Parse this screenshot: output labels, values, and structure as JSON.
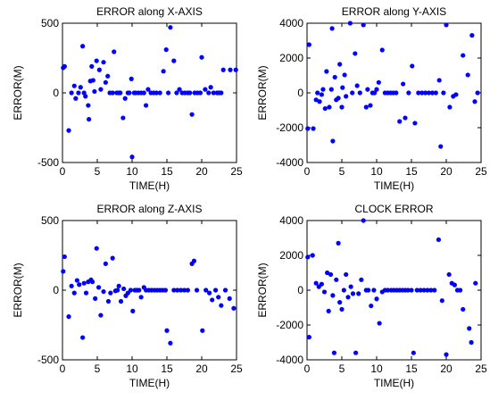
{
  "chart_data": [
    {
      "type": "scatter",
      "title": "ERROR along X-AXIS",
      "xlabel": "TIME(H)",
      "ylabel": "ERROR(M)",
      "color": "#0000ff",
      "xlim": [
        0,
        25
      ],
      "ylim": [
        -500,
        500
      ],
      "xticks": [
        0,
        5,
        10,
        15,
        20,
        25
      ],
      "yticks": [
        -500,
        0,
        500
      ],
      "x": [
        0.1,
        0.3,
        0.9,
        1.3,
        1.7,
        1.9,
        2.3,
        2.6,
        2.9,
        3.1,
        3.3,
        3.7,
        3.8,
        4.0,
        4.2,
        4.4,
        4.6,
        4.9,
        5.3,
        5.5,
        5.9,
        6.2,
        6.5,
        6.8,
        7.2,
        7.4,
        7.8,
        8.1,
        8.3,
        8.7,
        9.0,
        9.4,
        9.6,
        9.9,
        10.0,
        10.3,
        10.5,
        10.9,
        11.3,
        11.7,
        12.0,
        12.3,
        12.7,
        13.1,
        13.5,
        14.0,
        14.5,
        14.9,
        15.2,
        15.5,
        16.0,
        16.4,
        16.8,
        17.2,
        17.6,
        18.0,
        18.3,
        18.6,
        19.0,
        19.4,
        19.8,
        20.0,
        20.5,
        21.0,
        21.3,
        21.7,
        22.2,
        22.5,
        22.8,
        23.1,
        24.1,
        24.9
      ],
      "values": [
        180,
        190,
        -270,
        0,
        50,
        -40,
        0,
        40,
        335,
        0,
        -25,
        -90,
        -190,
        85,
        190,
        90,
        10,
        230,
        165,
        25,
        220,
        75,
        120,
        0,
        0,
        295,
        0,
        0,
        0,
        -180,
        -40,
        0,
        0,
        100,
        -460,
        0,
        0,
        0,
        0,
        0,
        -90,
        25,
        0,
        0,
        0,
        0,
        155,
        310,
        0,
        470,
        230,
        0,
        25,
        0,
        0,
        0,
        0,
        -155,
        0,
        0,
        0,
        255,
        25,
        0,
        40,
        0,
        0,
        0,
        0,
        165,
        165,
        165
      ]
    },
    {
      "type": "scatter",
      "title": "ERROR along Y-AXIS",
      "xlabel": "TIME(H)",
      "ylabel": "ERROR(M)",
      "color": "#0000ff",
      "xlim": [
        0,
        25
      ],
      "ylim": [
        -4000,
        4000
      ],
      "xticks": [
        0,
        5,
        10,
        15,
        20,
        25
      ],
      "yticks": [
        -4000,
        -2000,
        0,
        2000,
        4000
      ],
      "x": [
        0.1,
        0.3,
        0.9,
        1.3,
        1.5,
        1.8,
        2.1,
        2.3,
        2.6,
        2.8,
        3.2,
        3.5,
        3.6,
        3.7,
        4.0,
        4.2,
        4.5,
        4.7,
        5.0,
        5.1,
        5.4,
        5.6,
        6.2,
        6.5,
        6.9,
        7.2,
        7.6,
        8.1,
        8.5,
        8.7,
        9.1,
        9.4,
        9.7,
        10.0,
        10.3,
        10.8,
        11.2,
        11.6,
        12.0,
        12.4,
        12.8,
        13.3,
        13.8,
        14.1,
        14.6,
        15.1,
        15.5,
        16.0,
        16.5,
        17.0,
        17.5,
        18.0,
        18.5,
        19.0,
        19.2,
        19.6,
        20.0,
        20.5,
        21.0,
        21.4,
        22.4,
        23.1,
        23.7,
        24.1,
        24.5
      ],
      "values": [
        -2050,
        2770,
        -2050,
        -400,
        0,
        -500,
        -100,
        200,
        -900,
        1230,
        -820,
        200,
        3700,
        -2770,
        900,
        -400,
        -300,
        1640,
        -820,
        300,
        1030,
        -200,
        4000,
        0,
        2260,
        410,
        0,
        3900,
        -820,
        200,
        -720,
        0,
        0,
        200,
        600,
        2460,
        0,
        0,
        0,
        0,
        0,
        -1640,
        510,
        -1440,
        0,
        1540,
        -1740,
        0,
        0,
        0,
        0,
        0,
        0,
        720,
        -3080,
        0,
        3900,
        -820,
        -200,
        -100,
        2150,
        1030,
        3300,
        -500,
        0
      ]
    },
    {
      "type": "scatter",
      "title": "ERROR along Z-AXIS",
      "xlabel": "TIME(H)",
      "ylabel": "ERROR(M)",
      "color": "#0000ff",
      "xlim": [
        0,
        25
      ],
      "ylim": [
        -500,
        500
      ],
      "xticks": [
        0,
        5,
        10,
        15,
        20,
        25
      ],
      "yticks": [
        -500,
        0,
        500
      ],
      "x": [
        0.1,
        0.3,
        0.9,
        1.3,
        1.7,
        2.1,
        2.4,
        2.9,
        3.1,
        3.4,
        3.7,
        4.1,
        4.3,
        4.7,
        4.9,
        5.2,
        5.5,
        5.9,
        6.2,
        6.6,
        6.9,
        7.2,
        7.6,
        7.9,
        8.1,
        8.4,
        8.8,
        9.1,
        9.4,
        9.8,
        10.1,
        10.4,
        10.7,
        11.0,
        11.3,
        11.7,
        12.0,
        12.4,
        12.8,
        13.2,
        13.6,
        14.0,
        14.4,
        14.8,
        15.0,
        15.5,
        16.0,
        16.5,
        17.0,
        17.5,
        18.0,
        18.6,
        18.9,
        19.3,
        20.1,
        20.6,
        21.1,
        21.5,
        22.0,
        22.4,
        22.8,
        23.4,
        24.0,
        24.6
      ],
      "values": [
        135,
        240,
        -190,
        30,
        -20,
        70,
        40,
        -340,
        50,
        -20,
        60,
        75,
        60,
        -60,
        300,
        20,
        -180,
        -10,
        190,
        -80,
        -20,
        230,
        -5,
        0,
        30,
        -80,
        10,
        -40,
        -20,
        0,
        -150,
        0,
        0,
        0,
        -50,
        20,
        0,
        0,
        0,
        0,
        0,
        0,
        0,
        0,
        -290,
        -380,
        0,
        0,
        0,
        0,
        0,
        190,
        210,
        0,
        -290,
        0,
        -20,
        -70,
        0,
        -50,
        -110,
        0,
        -60,
        -130
      ]
    },
    {
      "type": "scatter",
      "title": "CLOCK ERROR",
      "xlabel": "TIME(H)",
      "ylabel": "ERROR(M)",
      "color": "#0000ff",
      "xlim": [
        0,
        25
      ],
      "ylim": [
        -4000,
        4000
      ],
      "xticks": [
        0,
        5,
        10,
        15,
        20,
        25
      ],
      "yticks": [
        -4000,
        -2000,
        0,
        2000,
        4000
      ],
      "x": [
        0.1,
        0.3,
        0.8,
        1.3,
        1.7,
        2.1,
        2.5,
        2.9,
        3.1,
        3.4,
        3.7,
        3.9,
        4.2,
        4.5,
        4.7,
        5.0,
        5.3,
        5.6,
        5.9,
        6.3,
        6.6,
        7.0,
        7.4,
        7.8,
        8.1,
        8.5,
        8.8,
        9.2,
        9.6,
        10.0,
        10.4,
        10.8,
        11.2,
        11.6,
        12.1,
        12.5,
        12.9,
        13.3,
        13.7,
        14.1,
        14.5,
        15.0,
        15.3,
        15.8,
        16.3,
        16.8,
        17.3,
        17.8,
        18.3,
        18.9,
        19.4,
        20.0,
        20.4,
        20.8,
        21.2,
        21.6,
        22.0,
        22.4,
        23.3,
        23.6,
        24.2
      ],
      "values": [
        1900,
        -2700,
        2000,
        400,
        200,
        350,
        -100,
        1000,
        -1200,
        900,
        -300,
        -3600,
        600,
        2700,
        -700,
        -1100,
        0,
        900,
        -400,
        200,
        -200,
        -3600,
        -200,
        600,
        4000,
        0,
        0,
        -900,
        0,
        -500,
        -1900,
        -100,
        0,
        0,
        0,
        0,
        0,
        0,
        0,
        0,
        0,
        0,
        -3600,
        0,
        0,
        0,
        0,
        0,
        0,
        2900,
        -600,
        -3700,
        900,
        400,
        300,
        0,
        0,
        -1100,
        -2200,
        -3000,
        400
      ]
    }
  ]
}
